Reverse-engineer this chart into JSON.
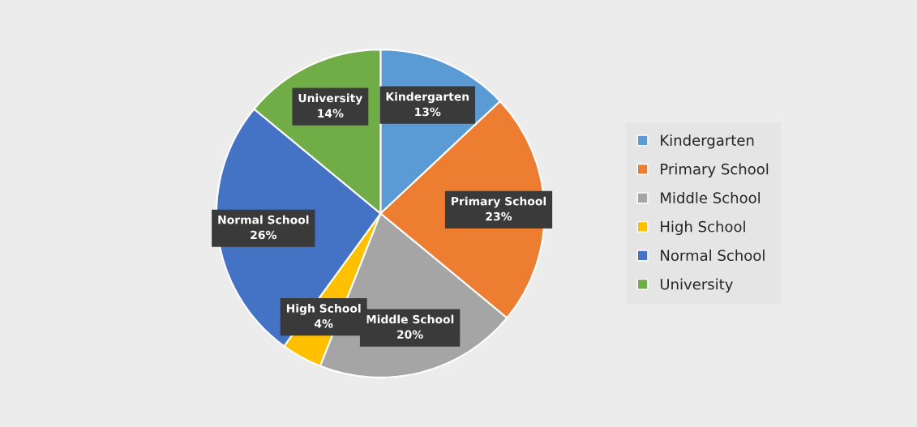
{
  "chart_data": {
    "type": "pie",
    "categories": [
      "Kindergarten",
      "Primary School",
      "Middle School",
      "High School",
      "Normal School",
      "University"
    ],
    "values": [
      13,
      23,
      20,
      4,
      26,
      14
    ],
    "value_labels": [
      "13%",
      "23%",
      "20%",
      "4%",
      "26%",
      "14%"
    ],
    "colors": [
      "#5b9bd5",
      "#ed7d31",
      "#a5a5a5",
      "#ffc000",
      "#4472c4",
      "#70ad47"
    ],
    "legend": "right"
  }
}
